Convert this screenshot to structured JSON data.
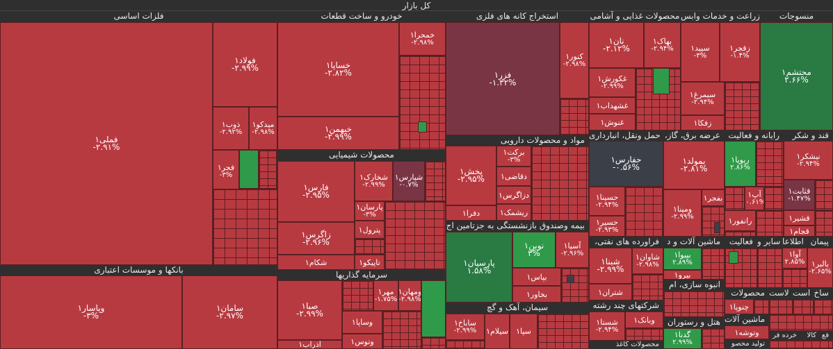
{
  "title": "کل بازار",
  "sections": {
    "felezat": "فلزات اساسی",
    "khodro": "خودرو و ساخت قطعات",
    "estekhraj": "استخراج کانه های فلزی",
    "ghazaei": "محصولات غذایی و آشامی",
    "zeraat": "زراعت و خدمات وابس",
    "mansoojat": "منسوجات",
    "shimiaei": "محصولات شیمیایی",
    "daroei": "مواد و محصولات دارویی",
    "haml": "حمل ونقل، انبارداری",
    "bargh": "،عرضه برق، گاز",
    "rayane": "رایانه و فعالیت",
    "ghand": "قند و شکر",
    "bimeh": "بیمه وصندوق بازنشستگی به جزتامین اج",
    "bank": "بانکها و موسسات اعتباری",
    "sarmaye": "سرمایه گذاریها",
    "naft": "،فراورده های نفتی",
    "mashin": "ماشین آلات و د",
    "faaliat": "فعالیت",
    "sayer": "سایر و",
    "etela": "اطلاعا",
    "peyman": "پیمان",
    "siman": "سیمان، آهک و گچ",
    "chand": "شرکتهای چند رشته",
    "anbooh": "انبوه سازی، ام",
    "hotel": "هتل و رستوران",
    "mahsoolat": "محصولات",
    "asat": "است",
    "lasat": "لاست",
    "sakh": "ساخ",
    "mashin2": "ماشین آلات",
    "kagh": "محصولات کاغذ",
    "fa": "فع",
    "kala": "کالا",
    "kharde": "خرده فر",
    "tolid": "تولید محصو"
  },
  "cells": {
    "fameli": {
      "name": "فملی۱",
      "pct": "-۲.۹۱%"
    },
    "foolad": {
      "name": "فولاد۱",
      "pct": "-۲.۹۹%"
    },
    "zob": {
      "name": "ذوب۱",
      "pct": "-۲.۹۲%"
    },
    "midko": {
      "name": "میدکو۱",
      "pct": "-۲.۹۸%"
    },
    "fajr": {
      "name": "فجر۱",
      "pct": "-۳%"
    },
    "khesapa": {
      "name": "خساپا۱",
      "pct": "-۲.۸۲%"
    },
    "khemehr": {
      "name": "خبهمن۱",
      "pct": "-۲.۹۹%"
    },
    "khamra": {
      "name": "خمحرا۱",
      "pct": "-۲.۹۸%"
    },
    "fazar": {
      "name": "فزر۱",
      "pct": "-۱.۳۲%"
    },
    "kanor": {
      "name": "کنور۱",
      "pct": "-۲.۹۸%"
    },
    "nan": {
      "name": "نان۱",
      "pct": "-۲.۱۲%"
    },
    "behak": {
      "name": "بهاک۱",
      "pct": "-۲.۹۴%"
    },
    "ghkoresh": {
      "name": "غکورش۱",
      "pct": "-۲.۹۹%"
    },
    "ghshahdab": {
      "name": "غشهداب۱",
      "pct": ""
    },
    "ghnosh": {
      "name": "غنوش۱",
      "pct": ""
    },
    "sepid": {
      "name": "سپید۱",
      "pct": "-۳%"
    },
    "zagrof": {
      "name": "زقجر۱",
      "pct": "-۱.۴%"
    },
    "simorgh": {
      "name": "سیمرغ۱",
      "pct": "-۲.۹۴%"
    },
    "zaqfa": {
      "name": "زفکا۱",
      "pct": ""
    },
    "mahtasham": {
      "name": "محتشم۱",
      "pct": "۲.۶۶%"
    },
    "fars": {
      "name": "فارس۱",
      "pct": "-۲.۹۵%"
    },
    "shkharak": {
      "name": "شخارک۱",
      "pct": "-۲.۹۹%"
    },
    "shpars": {
      "name": "شپارس۱",
      "pct": "-۰.۷%"
    },
    "zagros": {
      "name": "زاگرس۱",
      "pct": "-۲.۹۶%"
    },
    "parsan": {
      "name": "پارسان۱",
      "pct": "-۳%"
    },
    "petrol": {
      "name": "پترول۱",
      "pct": ""
    },
    "shkam": {
      "name": "شکام۱",
      "pct": ""
    },
    "tapiko": {
      "name": "تاپیکو۱",
      "pct": ""
    },
    "pakhsh": {
      "name": "پخش۱",
      "pct": "-۲.۹۵%"
    },
    "barakat": {
      "name": "برکت۱",
      "pct": "-۳%"
    },
    "daghi": {
      "name": "دقاضی۱",
      "pct": ""
    },
    "dzagros": {
      "name": "دزاگرس۱",
      "pct": ""
    },
    "rishmak": {
      "name": "ریشمک۱",
      "pct": ""
    },
    "dfara": {
      "name": "دفرا۱",
      "pct": ""
    },
    "hafars": {
      "name": "حفارس۱",
      "pct": "-۰.۵۶%"
    },
    "bmolad": {
      "name": "بمولد۱",
      "pct": "-۲.۸۱%"
    },
    "hsina": {
      "name": "حسینا۱",
      "pct": "-۲.۹۴%"
    },
    "hkhazar": {
      "name": "حسیر۱",
      "pct": "-۲.۹۳%"
    },
    "vmapna": {
      "name": "ومپنا۱",
      "pct": "-۲.۹۹%"
    },
    "bjahr": {
      "name": "بفجر۱",
      "pct": ""
    },
    "ryopa": {
      "name": "ریوپا۱",
      "pct": "۲.۸۶%"
    },
    "ap": {
      "name": "آپ۱",
      "pct": "-۰.۶۱%"
    },
    "ranfor": {
      "name": "رانفور۱",
      "pct": ""
    },
    "nishkar": {
      "name": "نیشکر۱",
      "pct": "-۲.۹۴%"
    },
    "ghtabat": {
      "name": "قثابت۱",
      "pct": "-۱.۴۷%"
    },
    "ghshirin": {
      "name": "قشیر۱",
      "pct": ""
    },
    "ghjam": {
      "name": "قجام۱",
      "pct": ""
    },
    "parsian": {
      "name": "پارسیان۱",
      "pct": "۱.۵۸%"
    },
    "novin": {
      "name": "نوین۱",
      "pct": "۳%"
    },
    "asia": {
      "name": "آسیا۱",
      "pct": "-۲.۹۶%"
    },
    "bpas": {
      "name": "بپاس۱",
      "pct": ""
    },
    "bkhavar": {
      "name": "بخاور۱",
      "pct": ""
    },
    "saman": {
      "name": "سامان۱",
      "pct": "-۲.۹۷%"
    },
    "vapasar": {
      "name": "وپاسار۱",
      "pct": "-۳%"
    },
    "saba": {
      "name": "صبا۱",
      "pct": "-۲.۹۹%"
    },
    "mehr": {
      "name": "مهر۱",
      "pct": "-۱.۷۵%"
    },
    "vmehr": {
      "name": "ومهان۱",
      "pct": "-۲.۹۸%"
    },
    "vsapa": {
      "name": "وساپا۱",
      "pct": ""
    },
    "vtoos": {
      "name": "وتوس۱",
      "pct": ""
    },
    "azarab": {
      "name": "آذراب۱",
      "pct": ""
    },
    "shbina": {
      "name": "شبنا۱",
      "pct": "-۲.۹۹%"
    },
    "shavan": {
      "name": "شاوان۱",
      "pct": "-۲.۹۸%"
    },
    "shetran": {
      "name": "شتران۱",
      "pct": ""
    },
    "bipeyva": {
      "name": "بپیوا۱",
      "pct": "۲.۸۹%"
    },
    "bira": {
      "name": "بیرو۱",
      "pct": ""
    },
    "aval": {
      "name": "آوا۱",
      "pct": "۲.۸۵%"
    },
    "balbar": {
      "name": "بالبر۱",
      "pct": "-۲.۶۵%"
    },
    "sabhagh": {
      "name": "ساباخ۱",
      "pct": "-۲.۹۹%"
    },
    "sifars": {
      "name": "سیلام۱",
      "pct": ""
    },
    "sepa": {
      "name": "سپا۱",
      "pct": ""
    },
    "shasta": {
      "name": "شستا۱",
      "pct": "-۲.۹۴%"
    },
    "vbank": {
      "name": "وبانک۱",
      "pct": ""
    },
    "gadna": {
      "name": "گدنا۱",
      "pct": "۲.۹۹%"
    },
    "chenopa": {
      "name": "چنوپا۱",
      "pct": ""
    },
    "vtoosh": {
      "name": "وتوشه۱",
      "pct": ""
    }
  }
}
